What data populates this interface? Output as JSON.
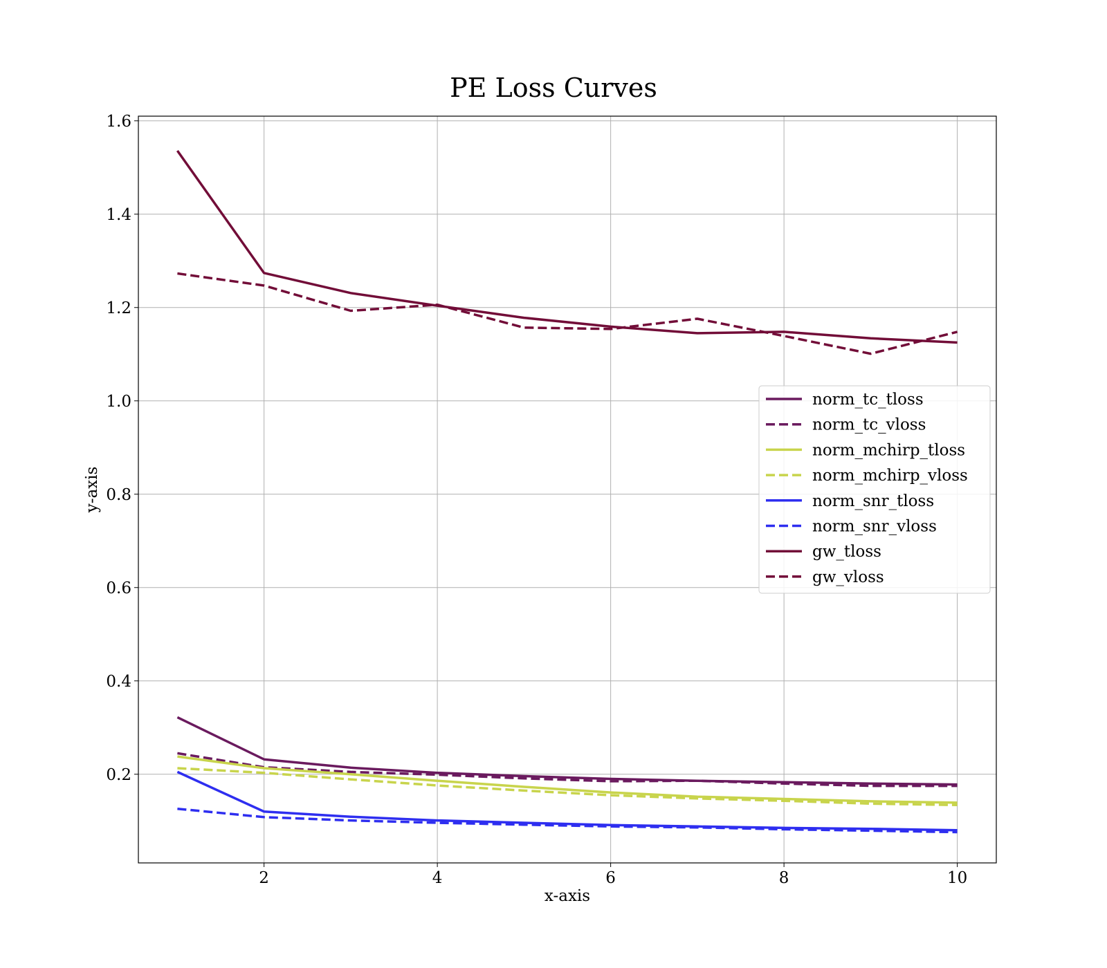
{
  "chart_data": {
    "type": "line",
    "title": "PE Loss Curves",
    "xlabel": "x-axis",
    "ylabel": "y-axis",
    "xlim": [
      0.55,
      10.45
    ],
    "ylim": [
      0.01,
      1.61
    ],
    "xticks": [
      2,
      4,
      6,
      8,
      10
    ],
    "yticks": [
      0.2,
      0.4,
      0.6,
      0.8,
      1.0,
      1.2,
      1.4,
      1.6
    ],
    "grid": true,
    "legend_position": "center right",
    "x": [
      1,
      2,
      3,
      4,
      5,
      6,
      7,
      8,
      9,
      10
    ],
    "series": [
      {
        "name": "norm_tc_tloss",
        "color": "#6a1a5e",
        "dash": "solid",
        "values": [
          0.322,
          0.232,
          0.214,
          0.203,
          0.196,
          0.19,
          0.186,
          0.183,
          0.18,
          0.178
        ]
      },
      {
        "name": "norm_tc_vloss",
        "color": "#6a1a5e",
        "dash": "dashed",
        "values": [
          0.245,
          0.215,
          0.205,
          0.199,
          0.191,
          0.185,
          0.186,
          0.18,
          0.175,
          0.175
        ]
      },
      {
        "name": "norm_mchirp_tloss",
        "color": "#c8d44c",
        "dash": "solid",
        "values": [
          0.238,
          0.213,
          0.2,
          0.186,
          0.173,
          0.161,
          0.152,
          0.147,
          0.142,
          0.139
        ]
      },
      {
        "name": "norm_mchirp_vloss",
        "color": "#c8d44c",
        "dash": "dashed",
        "values": [
          0.213,
          0.203,
          0.189,
          0.176,
          0.165,
          0.155,
          0.148,
          0.143,
          0.137,
          0.134
        ]
      },
      {
        "name": "norm_snr_tloss",
        "color": "#2e2ef0",
        "dash": "solid",
        "values": [
          0.205,
          0.12,
          0.109,
          0.101,
          0.096,
          0.091,
          0.088,
          0.085,
          0.083,
          0.08
        ]
      },
      {
        "name": "norm_snr_vloss",
        "color": "#2e2ef0",
        "dash": "dashed",
        "values": [
          0.126,
          0.108,
          0.101,
          0.096,
          0.092,
          0.088,
          0.086,
          0.082,
          0.079,
          0.076
        ]
      },
      {
        "name": "gw_tloss",
        "color": "#720d38",
        "dash": "solid",
        "values": [
          1.536,
          1.274,
          1.231,
          1.204,
          1.178,
          1.159,
          1.145,
          1.148,
          1.134,
          1.125
        ]
      },
      {
        "name": "gw_vloss",
        "color": "#720d38",
        "dash": "dashed",
        "values": [
          1.273,
          1.247,
          1.193,
          1.206,
          1.157,
          1.154,
          1.176,
          1.139,
          1.101,
          1.148
        ]
      }
    ]
  }
}
